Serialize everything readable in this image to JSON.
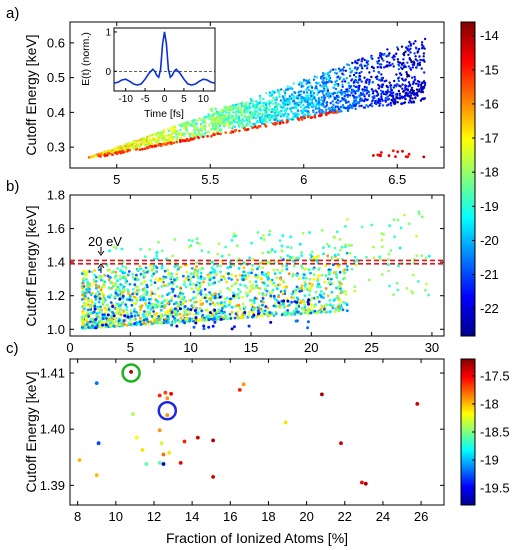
{
  "chart_data": [
    {
      "panel": "a)",
      "type": "scatter",
      "ylabel": "Cutoff Energy [keV]",
      "xlim": [
        4.75,
        6.75
      ],
      "ylim": [
        0.24,
        0.66
      ],
      "xticks": [
        "5",
        "5.5",
        "6",
        "6.5"
      ],
      "xtick_values": [
        5,
        5.5,
        6,
        6.5
      ],
      "yticks": [
        "0.3",
        "0.4",
        "0.5",
        "0.6"
      ],
      "ytick_values": [
        0.3,
        0.4,
        0.5,
        0.6
      ],
      "description_points": "dense fan of points from (4.85,0.27) spreading to upper branch ~0.62 and lower branch ~0.45 at x~6.6; color encodes log intensity",
      "inset": {
        "xlabel": "Time [fs]",
        "ylabel": "E(t) (norm.)",
        "xticks": [
          "-10",
          "-5",
          "0",
          "5",
          "10"
        ],
        "xtick_values": [
          -10,
          -5,
          0,
          5,
          10
        ],
        "yticks": [
          "0",
          "1"
        ],
        "ytick_values": [
          0,
          1
        ],
        "xlim": [
          -13,
          13
        ],
        "ylim": [
          -0.5,
          1.1
        ],
        "curve": {
          "x": [
            -13,
            -12,
            -11,
            -10,
            -9,
            -8,
            -7,
            -6,
            -5,
            -4,
            -3,
            -2.5,
            -2,
            -1.5,
            -1,
            -0.5,
            0,
            0.5,
            1,
            1.5,
            2,
            2.5,
            3,
            4,
            5,
            6,
            7,
            8,
            9,
            10,
            11,
            12,
            13
          ],
          "y": [
            -0.3,
            -0.28,
            -0.22,
            -0.2,
            -0.25,
            -0.32,
            -0.35,
            -0.32,
            -0.2,
            -0.05,
            0.05,
            0.0,
            -0.1,
            -0.15,
            0.05,
            0.7,
            1.0,
            0.7,
            0.05,
            -0.15,
            -0.1,
            0.0,
            0.05,
            -0.05,
            -0.2,
            -0.32,
            -0.35,
            -0.32,
            -0.25,
            -0.2,
            -0.22,
            -0.28,
            -0.3
          ]
        }
      }
    },
    {
      "panel": "b)",
      "type": "scatter",
      "ylabel": "Cutoff Energy [keV]",
      "xlim": [
        0,
        31
      ],
      "ylim": [
        0.96,
        1.8
      ],
      "xticks": [
        "0",
        "5",
        "10",
        "15",
        "20",
        "25",
        "30"
      ],
      "xtick_values": [
        0,
        5,
        10,
        15,
        20,
        25,
        30
      ],
      "yticks": [
        "1.0",
        "1.2",
        "1.4",
        "1.6",
        "1.8"
      ],
      "ytick_values": [
        1.0,
        1.2,
        1.4,
        1.6,
        1.8
      ],
      "band": {
        "lower": 1.39,
        "upper": 1.41,
        "label": "20 eV",
        "color": "#e8141c"
      }
    },
    {
      "panel": "c)",
      "type": "scatter",
      "xlabel": "Fraction of Ionized Atoms [%]",
      "ylabel": "Cutoff Energy [keV]",
      "xlim": [
        7.6,
        27.2
      ],
      "ylim": [
        1.3865,
        1.4125
      ],
      "xticks": [
        "8",
        "10",
        "12",
        "14",
        "16",
        "18",
        "20",
        "22",
        "24",
        "26"
      ],
      "xtick_values": [
        8,
        10,
        12,
        14,
        16,
        18,
        20,
        22,
        24,
        26
      ],
      "yticks": [
        "1.39",
        "1.40",
        "1.41"
      ],
      "ytick_values": [
        1.39,
        1.4,
        1.41
      ],
      "points": [
        {
          "x": 9.0,
          "y": 1.4082,
          "v": -19.2
        },
        {
          "x": 10.8,
          "y": 1.4102,
          "v": -17.3
        },
        {
          "x": 10.9,
          "y": 1.4027,
          "v": -18.4
        },
        {
          "x": 11.1,
          "y": 1.3985,
          "v": -18.2
        },
        {
          "x": 12.3,
          "y": 1.406,
          "v": -17.6
        },
        {
          "x": 12.6,
          "y": 1.4065,
          "v": -17.7
        },
        {
          "x": 12.7,
          "y": 1.4055,
          "v": -17.9
        },
        {
          "x": 12.7,
          "y": 1.4025,
          "v": -17.9
        },
        {
          "x": 12.9,
          "y": 1.4063,
          "v": -17.5
        },
        {
          "x": 12.3,
          "y": 1.3998,
          "v": -17.9
        },
        {
          "x": 12.4,
          "y": 1.3975,
          "v": -18.3
        },
        {
          "x": 12.5,
          "y": 1.3938,
          "v": -19.6
        },
        {
          "x": 12.8,
          "y": 1.3958,
          "v": -18.1
        },
        {
          "x": 12.5,
          "y": 1.3955,
          "v": -17.8
        },
        {
          "x": 12.3,
          "y": 1.394,
          "v": -18.6
        },
        {
          "x": 11.6,
          "y": 1.3938,
          "v": -18.6
        },
        {
          "x": 11.4,
          "y": 1.3963,
          "v": -18.1
        },
        {
          "x": 13.6,
          "y": 1.3978,
          "v": -17.6
        },
        {
          "x": 14.3,
          "y": 1.3985,
          "v": -17.4
        },
        {
          "x": 15.1,
          "y": 1.398,
          "v": -17.3
        },
        {
          "x": 15.1,
          "y": 1.3915,
          "v": -17.4
        },
        {
          "x": 13.4,
          "y": 1.394,
          "v": -17.5
        },
        {
          "x": 9.1,
          "y": 1.3975,
          "v": -19.3
        },
        {
          "x": 9.0,
          "y": 1.3918,
          "v": -18.0
        },
        {
          "x": 8.1,
          "y": 1.3945,
          "v": -18.0
        },
        {
          "x": 16.5,
          "y": 1.407,
          "v": -17.6
        },
        {
          "x": 16.7,
          "y": 1.408,
          "v": -17.9
        },
        {
          "x": 18.9,
          "y": 1.4012,
          "v": -18.1
        },
        {
          "x": 20.8,
          "y": 1.4062,
          "v": -17.3
        },
        {
          "x": 21.8,
          "y": 1.3975,
          "v": -17.4
        },
        {
          "x": 22.9,
          "y": 1.3905,
          "v": -17.5
        },
        {
          "x": 23.1,
          "y": 1.3903,
          "v": -17.3
        },
        {
          "x": 25.8,
          "y": 1.4045,
          "v": -17.4
        }
      ],
      "circles": [
        {
          "x": 10.8,
          "y": 1.41,
          "color": "#1db31d"
        },
        {
          "x": 12.7,
          "y": 1.4033,
          "color": "#1e28e0"
        }
      ]
    }
  ],
  "colorbars": [
    {
      "range": [
        -22.8,
        -13.6
      ],
      "ticks": [
        "-14",
        "-15",
        "-16",
        "-17",
        "-18",
        "-19",
        "-20",
        "-21",
        "-22"
      ],
      "tick_values": [
        -14,
        -15,
        -16,
        -17,
        -18,
        -19,
        -20,
        -21,
        -22
      ]
    },
    {
      "range": [
        -19.8,
        -17.2
      ],
      "ticks": [
        "-17.5",
        "-18",
        "-18.5",
        "-19",
        "-19.5"
      ],
      "tick_values": [
        -17.5,
        -18,
        -18.5,
        -19,
        -19.5
      ]
    }
  ],
  "colormap": "jet"
}
